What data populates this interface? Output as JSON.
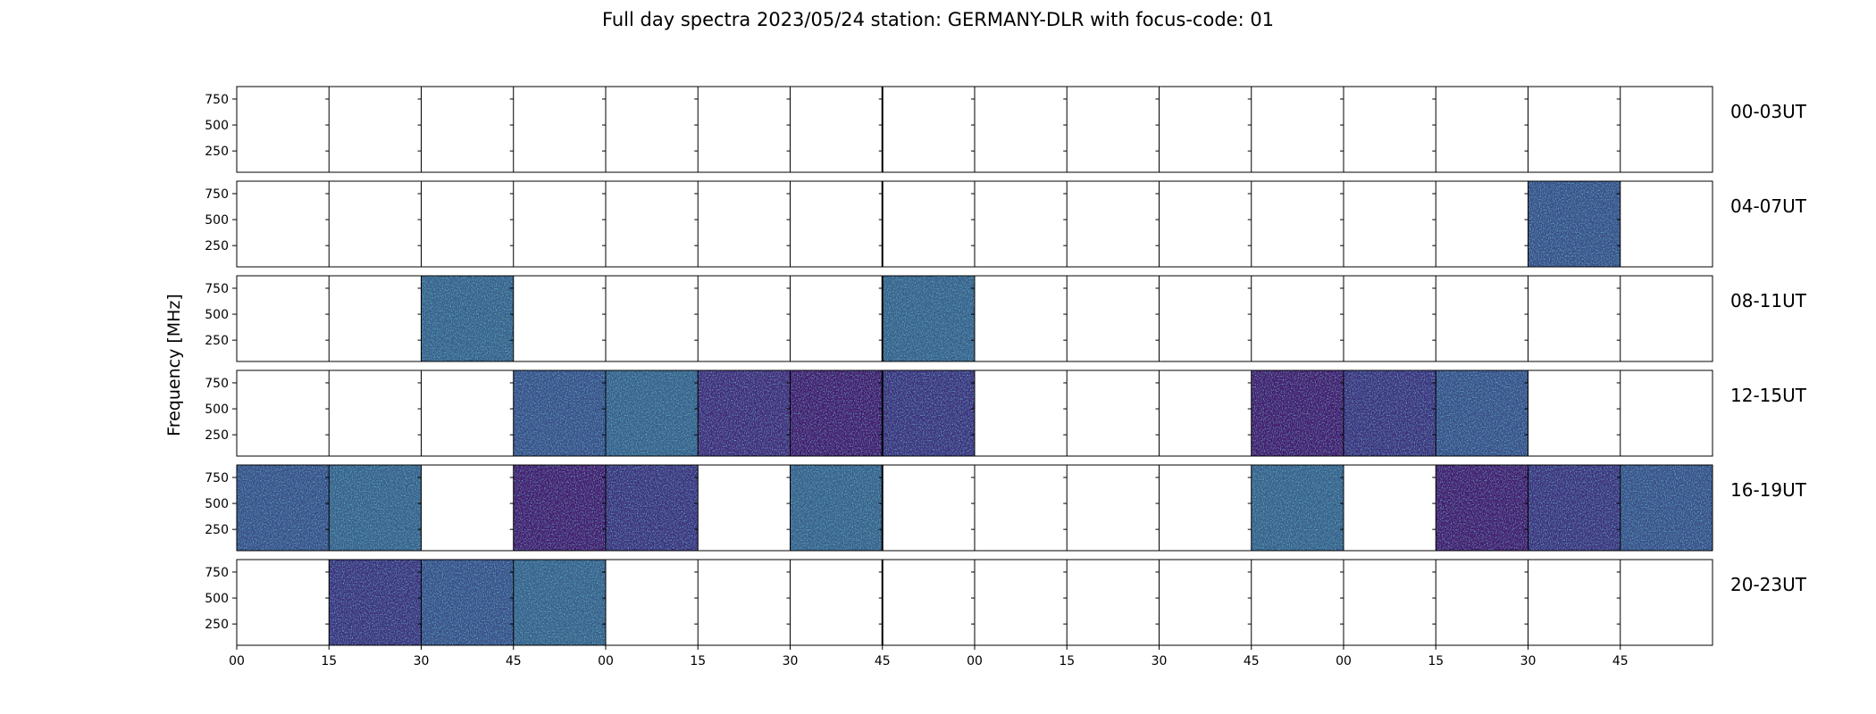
{
  "chart_data": {
    "type": "heatmap",
    "title": "Full day spectra 2023/05/24 station: GERMANY-DLR with focus-code: 01",
    "ylabel": "Frequency [MHz]",
    "xlabel": "",
    "y_ticks": [
      "750",
      "500",
      "250"
    ],
    "y_tick_values": [
      750,
      500,
      250
    ],
    "ylim": [
      45,
      870
    ],
    "x_ticks": [
      "00",
      "15",
      "30",
      "45",
      "00",
      "15",
      "30",
      "45",
      "00",
      "15",
      "30",
      "45",
      "00",
      "15",
      "30",
      "45"
    ],
    "minutes_per_cell": 15,
    "rows": [
      {
        "label": "00-03UT",
        "present": [
          0,
          0,
          0,
          0,
          0,
          0,
          0,
          0,
          0,
          0,
          0,
          0,
          0,
          0,
          0,
          0
        ]
      },
      {
        "label": "04-07UT",
        "present": [
          0,
          0,
          0,
          0,
          0,
          0,
          0,
          0,
          0,
          0,
          0,
          0,
          0,
          0,
          1,
          0
        ]
      },
      {
        "label": "08-11UT",
        "present": [
          0,
          0,
          1,
          0,
          0,
          0,
          0,
          1,
          0,
          0,
          0,
          0,
          0,
          0,
          0,
          0
        ]
      },
      {
        "label": "12-15UT",
        "present": [
          0,
          0,
          0,
          1,
          1,
          1,
          1,
          1,
          0,
          0,
          0,
          1,
          1,
          1,
          0,
          0
        ]
      },
      {
        "label": "16-19UT",
        "present": [
          1,
          1,
          0,
          1,
          1,
          0,
          1,
          0,
          0,
          0,
          0,
          1,
          0,
          1,
          1,
          1
        ]
      },
      {
        "label": "20-23UT",
        "present": [
          0,
          1,
          1,
          1,
          0,
          0,
          0,
          0,
          0,
          0,
          0,
          0,
          0,
          0,
          0,
          0
        ]
      }
    ],
    "colormap": "viridis",
    "colors": {
      "low": "#440154",
      "mid": "#3b528b",
      "high": "#21918c",
      "frame": "#000000"
    }
  }
}
